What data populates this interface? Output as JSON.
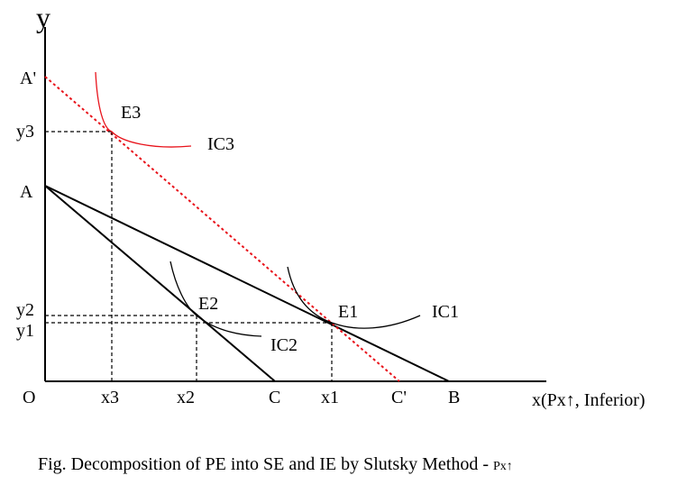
{
  "diagram": {
    "axis_labels": {
      "y": "y",
      "x": "x(Px↑, Inferior)",
      "origin": "O"
    },
    "y_tick_labels": {
      "A_prime": "A'",
      "y3": "y3",
      "A": "A",
      "y2": "y2",
      "y1": "y1"
    },
    "x_tick_labels": {
      "x3": "x3",
      "x2": "x2",
      "C": "C",
      "x1": "x1",
      "C_prime": "C'",
      "B": "B"
    },
    "point_labels": {
      "E3": "E3",
      "E2": "E2",
      "E1": "E1"
    },
    "curve_labels": {
      "IC3": "IC3",
      "IC2": "IC2",
      "IC1": "IC1"
    },
    "caption": {
      "main": "Fig. Decomposition of PE into SE and IE by Slutsky Method - ",
      "suffix": "Px↑"
    },
    "colors": {
      "ink": "#000000",
      "compensated_line": "#e8131b",
      "ic3": "#e8131b"
    }
  }
}
